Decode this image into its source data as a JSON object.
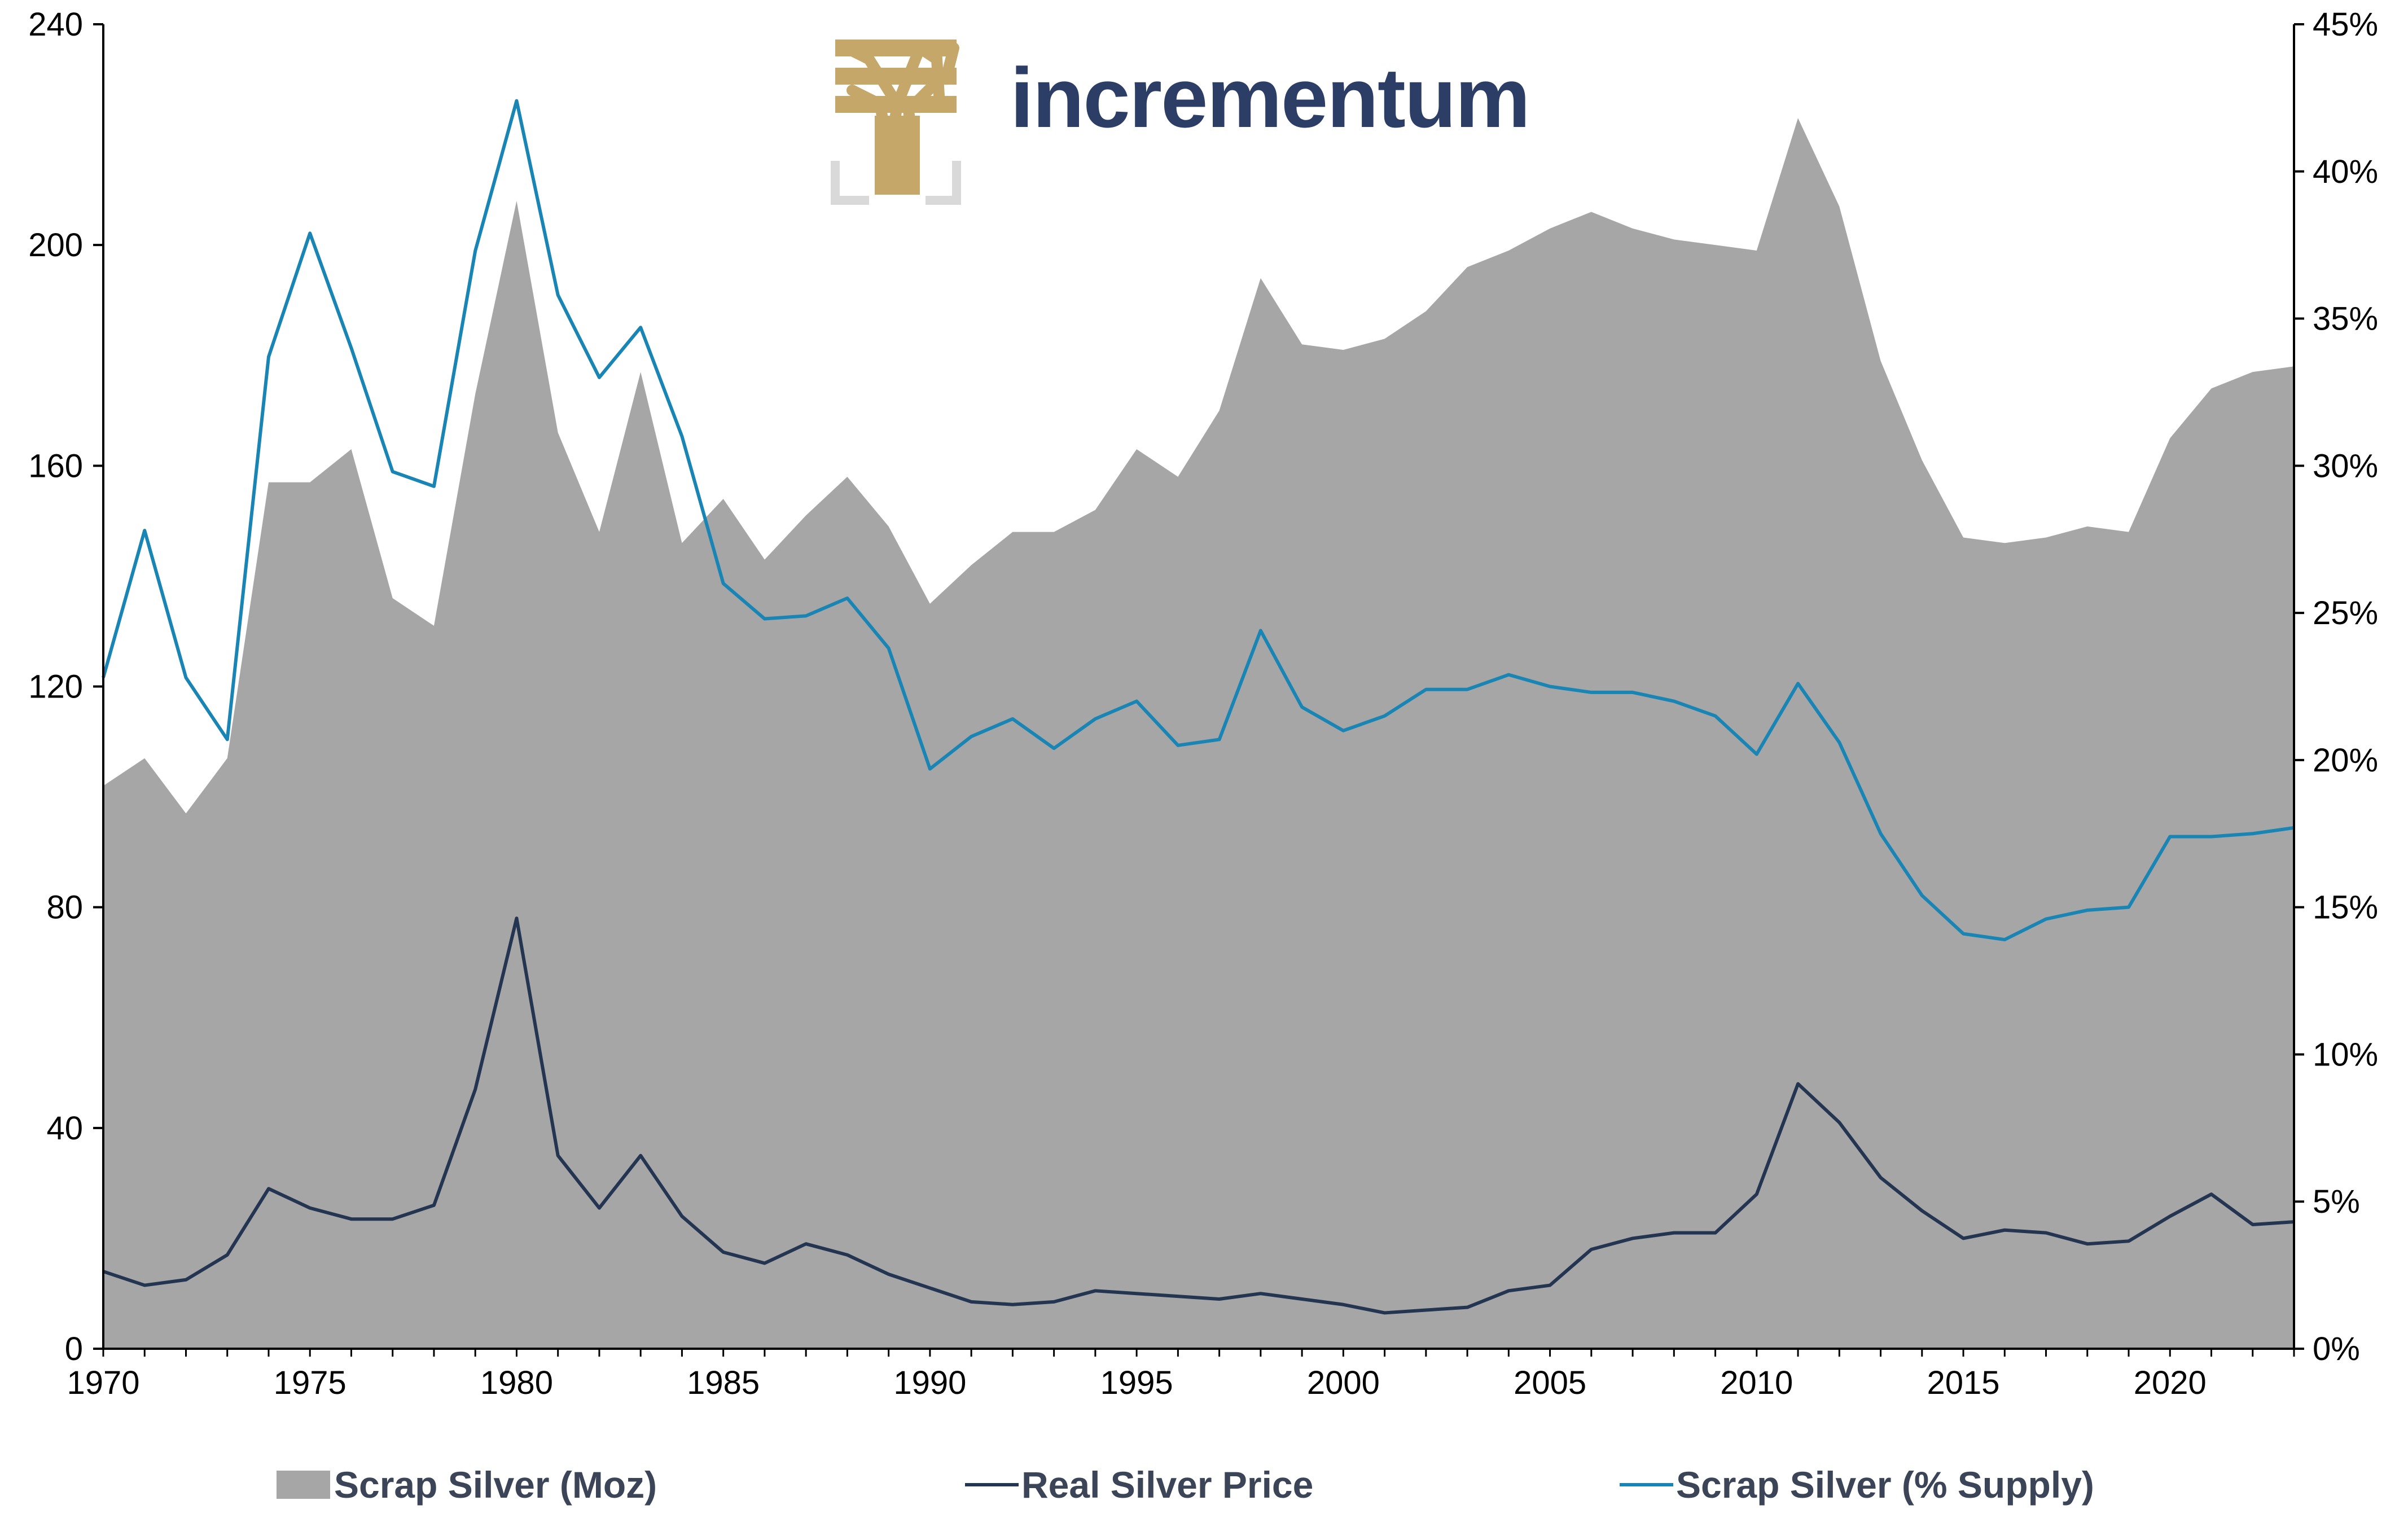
{
  "brand": {
    "name": "incrementum",
    "text_color": "#2c3e66",
    "logo_icon": "tree-icon",
    "logo_color": "#c4a769"
  },
  "chart_data": {
    "type": "area",
    "x": [
      1970,
      1971,
      1972,
      1973,
      1974,
      1975,
      1976,
      1977,
      1978,
      1979,
      1980,
      1981,
      1982,
      1983,
      1984,
      1985,
      1986,
      1987,
      1988,
      1989,
      1990,
      1991,
      1992,
      1993,
      1994,
      1995,
      1996,
      1997,
      1998,
      1999,
      2000,
      2001,
      2002,
      2003,
      2004,
      2005,
      2006,
      2007,
      2008,
      2009,
      2010,
      2011,
      2012,
      2013,
      2014,
      2015,
      2016,
      2017,
      2018,
      2019,
      2020,
      2021,
      2022,
      2023
    ],
    "xlim": [
      1970,
      2023
    ],
    "x_ticks": [
      "1970",
      "1975",
      "1980",
      "1985",
      "1990",
      "1995",
      "2000",
      "2005",
      "2010",
      "2015",
      "2020"
    ],
    "y_left": {
      "ylim": [
        0,
        240
      ],
      "ticks": [
        "0",
        "40",
        "80",
        "120",
        "160",
        "200",
        "240"
      ]
    },
    "y_right": {
      "ylim": [
        0,
        45
      ],
      "ticks": [
        "0%",
        "5%",
        "10%",
        "15%",
        "20%",
        "25%",
        "30%",
        "35%",
        "40%",
        "45%"
      ]
    },
    "grid": false,
    "legend_position": "bottom",
    "series": [
      {
        "name": "Scrap Silver (Moz)",
        "type": "area",
        "axis": "left",
        "color": "#a6a6a6",
        "values": [
          102,
          107,
          97,
          107,
          157,
          157,
          163,
          136,
          131,
          173,
          208,
          166,
          148,
          177,
          146,
          154,
          143,
          151,
          158,
          149,
          135,
          142,
          148,
          148,
          152,
          163,
          158,
          170,
          194,
          182,
          181,
          183,
          188,
          196,
          199,
          203,
          206,
          203,
          201,
          200,
          199,
          223,
          207,
          179,
          161,
          147,
          146,
          147,
          149,
          148,
          165,
          174,
          177,
          178
        ]
      },
      {
        "name": "Real Silver Price",
        "type": "line",
        "axis": "left",
        "color": "#243552",
        "values": [
          14,
          11.5,
          12.5,
          17,
          29,
          25.5,
          23.5,
          23.5,
          26,
          47,
          78,
          35,
          25.5,
          35,
          24,
          17.5,
          15.5,
          19,
          17,
          13.5,
          11,
          8.5,
          8,
          8.5,
          10.5,
          10,
          9.5,
          9,
          10,
          9,
          8,
          6.5,
          7,
          7.5,
          10.5,
          11.5,
          18,
          20,
          21,
          21,
          28,
          48,
          41,
          31,
          25,
          20,
          21.5,
          21,
          19,
          19.5,
          24,
          28,
          22.5,
          23
        ]
      },
      {
        "name": "Scrap Silver (% Supply)",
        "type": "line",
        "axis": "right",
        "color": "#1985b4",
        "values": [
          22.8,
          27.8,
          22.8,
          20.7,
          33.7,
          37.9,
          34,
          29.8,
          29.3,
          37.3,
          42.4,
          35.8,
          33,
          34.7,
          31,
          26,
          24.8,
          24.9,
          25.5,
          23.8,
          19.7,
          20.8,
          21.4,
          20.4,
          21.4,
          22,
          20.5,
          20.7,
          24.4,
          21.8,
          21,
          21.5,
          22.4,
          22.4,
          22.9,
          22.5,
          22.3,
          22.3,
          22,
          21.5,
          20.2,
          22.6,
          20.6,
          17.5,
          15.4,
          14.1,
          13.9,
          14.6,
          14.9,
          15,
          17.4,
          17.4,
          17.5,
          17.7
        ]
      }
    ]
  }
}
